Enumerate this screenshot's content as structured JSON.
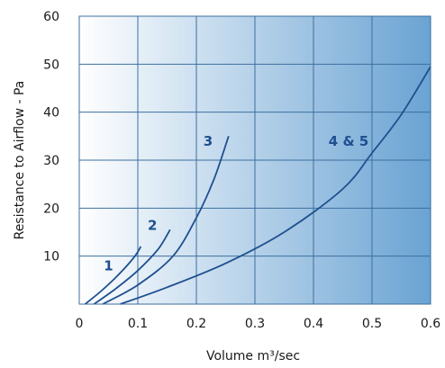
{
  "chart_data": {
    "type": "line",
    "xlabel": "Volume m³/sec",
    "ylabel": "Resistance to Airflow - Pa",
    "xlim": [
      0,
      0.6
    ],
    "ylim": [
      0,
      60
    ],
    "x_ticks": [
      "0",
      "0.1",
      "0.2",
      "0.3",
      "0.4",
      "0.5",
      "0.6"
    ],
    "y_ticks": [
      "10",
      "20",
      "30",
      "40",
      "50",
      "60"
    ],
    "grid": true,
    "line_color": "#1f4f8f",
    "label_color": "#1f4f8f",
    "background_gradient": [
      "#ffffff",
      "#6aa3d3"
    ],
    "series": [
      {
        "name": "1",
        "points": [
          [
            0.01,
            0
          ],
          [
            0.04,
            3
          ],
          [
            0.07,
            6.5
          ],
          [
            0.095,
            10
          ],
          [
            0.105,
            12
          ]
        ]
      },
      {
        "name": "2",
        "points": [
          [
            0.025,
            0
          ],
          [
            0.06,
            3
          ],
          [
            0.1,
            7
          ],
          [
            0.135,
            11.5
          ],
          [
            0.155,
            15.5
          ]
        ]
      },
      {
        "name": "3",
        "points": [
          [
            0.04,
            0
          ],
          [
            0.1,
            4
          ],
          [
            0.16,
            10
          ],
          [
            0.2,
            18
          ],
          [
            0.23,
            26
          ],
          [
            0.255,
            35
          ]
        ]
      },
      {
        "name": "4 & 5",
        "points": [
          [
            0.07,
            0
          ],
          [
            0.15,
            3.5
          ],
          [
            0.25,
            8.5
          ],
          [
            0.35,
            15
          ],
          [
            0.45,
            24
          ],
          [
            0.5,
            31.5
          ],
          [
            0.55,
            39.5
          ],
          [
            0.6,
            49.5
          ]
        ]
      }
    ],
    "labels": [
      {
        "text": "1",
        "x": 0.05,
        "y": 7
      },
      {
        "text": "2",
        "x": 0.125,
        "y": 15.5
      },
      {
        "text": "3",
        "x": 0.22,
        "y": 33
      },
      {
        "text": "4 & 5",
        "x": 0.46,
        "y": 33
      }
    ]
  }
}
